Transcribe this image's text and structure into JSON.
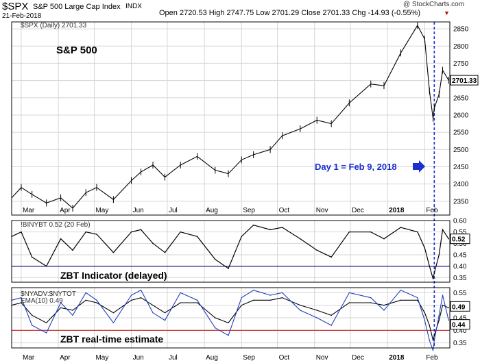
{
  "header": {
    "symbol": "$SPX",
    "name": "S&P 500 Large Cap Index",
    "exchange": "INDX",
    "date": "21-Feb-2018",
    "ohlc": "Open 2720.53  High 2747.75  Low 2701.29  Close 2701.33  Chg -14.93 (-0.55%)",
    "down_marker": "▼",
    "watermark": "@ StockCharts.com"
  },
  "panels": {
    "price_legend": "$SPX (Daily) 2701.33",
    "price_annotation": "S&P 500",
    "day1_annotation": "Day 1 = Feb 9, 2018",
    "zbt_legend": "!BINYBT 0.52 (20 Feb)",
    "zbt_annotation": "ZBT Indicator (delayed)",
    "adv_legend": "$NYADV:$NYTOT",
    "adv_ema_legend": "EMA(10) 0.49",
    "adv_annotation": "ZBT real-time estimate"
  },
  "colors": {
    "price": "#000000",
    "zbt_line": "#000000",
    "zbt_threshold": "#000080",
    "adv_line": "#1f3fbf",
    "adv_ema": "#000000",
    "adv_threshold": "#cc2222",
    "day1_marker": "#1a2fd0",
    "grid": "#d6d6d6",
    "border": "#000000"
  },
  "chart_data": [
    {
      "type": "line",
      "panel": "price",
      "series_style": "ohlc bars",
      "title": "$SPX (Daily) 2701.33",
      "x_tick_labels": [
        "Mar",
        "Apr",
        "May",
        "Jun",
        "Jul",
        "Aug",
        "Sep",
        "Oct",
        "Nov",
        "Dec",
        "2018",
        "Feb"
      ],
      "y_ticks": [
        2350,
        2400,
        2450,
        2500,
        2550,
        2600,
        2650,
        2700,
        2750,
        2800,
        2850
      ],
      "ylim": [
        2310,
        2870
      ],
      "last_value_label": "2701.33",
      "grid": true,
      "x": [
        "2017-02-21",
        "2017-03-01",
        "2017-03-10",
        "2017-03-22",
        "2017-04-03",
        "2017-04-13",
        "2017-04-24",
        "2017-05-03",
        "2017-05-17",
        "2017-06-01",
        "2017-06-09",
        "2017-06-19",
        "2017-06-29",
        "2017-07-12",
        "2017-07-26",
        "2017-08-10",
        "2017-08-21",
        "2017-09-01",
        "2017-09-11",
        "2017-09-25",
        "2017-10-05",
        "2017-10-20",
        "2017-11-03",
        "2017-11-15",
        "2017-11-30",
        "2017-12-18",
        "2017-12-29",
        "2018-01-12",
        "2018-01-26",
        "2018-02-01",
        "2018-02-05",
        "2018-02-08",
        "2018-02-09",
        "2018-02-13",
        "2018-02-16",
        "2018-02-21"
      ],
      "values": [
        2360,
        2390,
        2370,
        2345,
        2360,
        2330,
        2375,
        2390,
        2355,
        2410,
        2435,
        2455,
        2420,
        2455,
        2480,
        2440,
        2430,
        2470,
        2485,
        2500,
        2540,
        2560,
        2585,
        2575,
        2635,
        2690,
        2685,
        2780,
        2860,
        2820,
        2670,
        2590,
        2620,
        2660,
        2730,
        2701
      ]
    },
    {
      "type": "line",
      "panel": "zbt",
      "title": "!BINYBT 0.52 (20 Feb)",
      "x_tick_labels": [
        "Mar",
        "Apr",
        "May",
        "Jun",
        "Jul",
        "Aug",
        "Sep",
        "Oct",
        "Nov",
        "Dec",
        "2018",
        "Feb"
      ],
      "y_ticks": [
        0.35,
        0.4,
        0.45,
        0.5,
        0.55,
        0.6
      ],
      "ylim": [
        0.33,
        0.6
      ],
      "reference_line": 0.4,
      "last_value_label": "0.52",
      "grid": true,
      "x": [
        "2017-02-21",
        "2017-03-01",
        "2017-03-10",
        "2017-03-22",
        "2017-04-03",
        "2017-04-13",
        "2017-04-24",
        "2017-05-03",
        "2017-05-17",
        "2017-06-01",
        "2017-06-09",
        "2017-06-19",
        "2017-06-29",
        "2017-07-12",
        "2017-07-26",
        "2017-08-10",
        "2017-08-21",
        "2017-09-01",
        "2017-09-11",
        "2017-09-25",
        "2017-10-05",
        "2017-10-20",
        "2017-11-03",
        "2017-11-15",
        "2017-11-30",
        "2017-12-18",
        "2017-12-29",
        "2018-01-12",
        "2018-01-26",
        "2018-02-01",
        "2018-02-05",
        "2018-02-08",
        "2018-02-09",
        "2018-02-13",
        "2018-02-16",
        "2018-02-21"
      ],
      "values": [
        0.53,
        0.55,
        0.44,
        0.4,
        0.52,
        0.47,
        0.55,
        0.54,
        0.46,
        0.55,
        0.56,
        0.5,
        0.46,
        0.55,
        0.53,
        0.43,
        0.39,
        0.53,
        0.58,
        0.56,
        0.57,
        0.52,
        0.47,
        0.44,
        0.55,
        0.55,
        0.52,
        0.57,
        0.55,
        0.48,
        0.4,
        0.345,
        0.37,
        0.45,
        0.56,
        0.52
      ]
    },
    {
      "type": "line",
      "panel": "breadth",
      "title": "$NYADV:$NYTOT",
      "x_tick_labels": [
        "Mar",
        "Apr",
        "May",
        "Jun",
        "Jul",
        "Aug",
        "Sep",
        "Oct",
        "Nov",
        "Dec",
        "2018",
        "Feb"
      ],
      "y_ticks": [
        0.35,
        0.4,
        0.45,
        0.5,
        0.55
      ],
      "ylim": [
        0.33,
        0.57
      ],
      "reference_line": 0.4,
      "series": [
        {
          "name": "EMA(10) 0.49",
          "last_value_label": "0.49",
          "values": [
            0.5,
            0.51,
            0.46,
            0.43,
            0.49,
            0.48,
            0.52,
            0.51,
            0.47,
            0.52,
            0.53,
            0.5,
            0.47,
            0.51,
            0.51,
            0.45,
            0.43,
            0.5,
            0.52,
            0.52,
            0.53,
            0.5,
            0.48,
            0.46,
            0.51,
            0.51,
            0.5,
            0.52,
            0.52,
            0.47,
            0.42,
            0.36,
            0.38,
            0.44,
            0.5,
            0.49
          ]
        },
        {
          "name": "$NYADV:$NYTOT",
          "last_value_label": "0.44",
          "values": [
            0.52,
            0.53,
            0.42,
            0.39,
            0.51,
            0.46,
            0.55,
            0.52,
            0.43,
            0.54,
            0.56,
            0.47,
            0.44,
            0.55,
            0.52,
            0.41,
            0.38,
            0.53,
            0.56,
            0.54,
            0.55,
            0.48,
            0.45,
            0.42,
            0.55,
            0.53,
            0.48,
            0.56,
            0.53,
            0.44,
            0.36,
            0.32,
            0.36,
            0.46,
            0.54,
            0.44
          ]
        }
      ],
      "x": [
        "2017-02-21",
        "2017-03-01",
        "2017-03-10",
        "2017-03-22",
        "2017-04-03",
        "2017-04-13",
        "2017-04-24",
        "2017-05-03",
        "2017-05-17",
        "2017-06-01",
        "2017-06-09",
        "2017-06-19",
        "2017-06-29",
        "2017-07-12",
        "2017-07-26",
        "2017-08-10",
        "2017-08-21",
        "2017-09-01",
        "2017-09-11",
        "2017-09-25",
        "2017-10-05",
        "2017-10-20",
        "2017-11-03",
        "2017-11-15",
        "2017-11-30",
        "2017-12-18",
        "2017-12-29",
        "2018-01-12",
        "2018-01-26",
        "2018-02-01",
        "2018-02-05",
        "2018-02-08",
        "2018-02-09",
        "2018-02-13",
        "2018-02-16",
        "2018-02-21"
      ]
    }
  ],
  "day1_date": "2018-02-09"
}
